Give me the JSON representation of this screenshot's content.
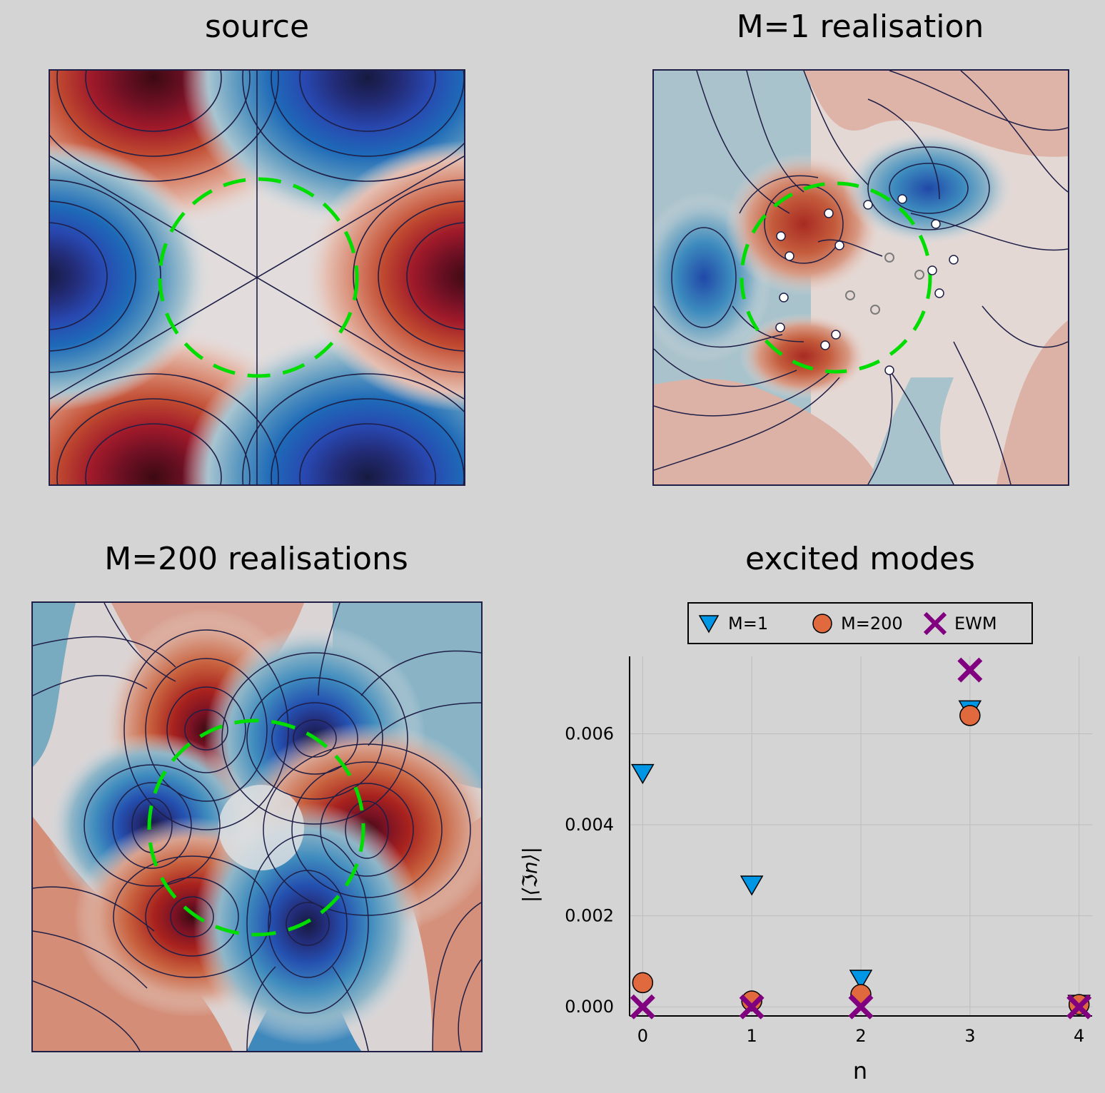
{
  "panels": {
    "source": {
      "title": "source"
    },
    "m1": {
      "title": "M=1 realisation"
    },
    "m200": {
      "title": "M=200 realisations"
    },
    "modes": {
      "title": "excited modes"
    }
  },
  "colors": {
    "background": "#d4d4d4",
    "dark_red": "#3c0a12",
    "dark_blue": "#161a40",
    "neutral": "#dcdfe2",
    "ring": "#00dd00",
    "contour_line": "#1e1e46",
    "m1_marker": "#0096e6",
    "m200_marker": "#e06a3e",
    "ewm_marker": "#800080"
  },
  "chart_data": {
    "type": "scatter",
    "title": "excited modes",
    "xlabel": "n",
    "ylabel": "|⟨ℑn⟩|",
    "x": [
      0,
      1,
      2,
      3,
      4
    ],
    "xticks": [
      "0",
      "1",
      "2",
      "3",
      "4"
    ],
    "yticks": [
      "0.000",
      "0.002",
      "0.004",
      "0.006"
    ],
    "xlim": [
      -0.12,
      4.12
    ],
    "ylim": [
      -0.0002,
      0.0077
    ],
    "grid": true,
    "legend_placement": "top",
    "series": [
      {
        "name": "M=1",
        "marker": "triangle-down",
        "color": "#0096e6",
        "values": [
          0.00515,
          0.0027,
          0.00063,
          0.00655,
          8e-05
        ]
      },
      {
        "name": "M=200",
        "marker": "circle",
        "color": "#e06a3e",
        "values": [
          0.00053,
          0.00013,
          0.00027,
          0.0064,
          5e-05
        ]
      },
      {
        "name": "EWM",
        "marker": "x",
        "color": "#800080",
        "values": [
          0.0,
          0.0,
          0.0,
          0.0074,
          0.0
        ]
      }
    ]
  }
}
